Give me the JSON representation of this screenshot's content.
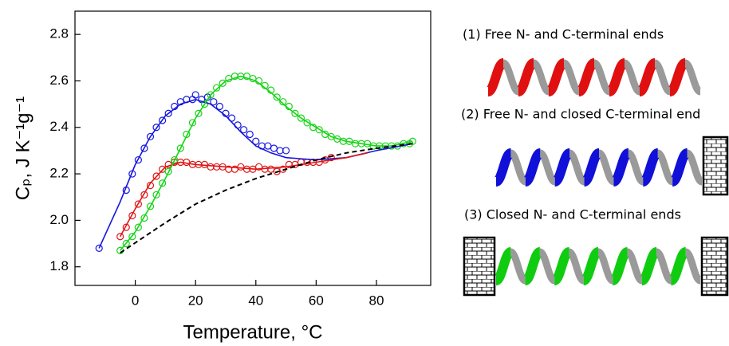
{
  "chart_data": {
    "type": "scatter",
    "xlabel": "Temperature, °C",
    "ylabel": "Cₚ, J K⁻¹g⁻¹",
    "xlim": [
      -20,
      98
    ],
    "ylim": [
      1.72,
      2.9
    ],
    "xticks": [
      0,
      20,
      40,
      60,
      80
    ],
    "yticks": [
      1.8,
      {
        "value": 2,
        "label": "2.0"
      },
      2.2,
      2.4,
      2.6,
      2.8
    ],
    "series": [
      {
        "mode": "markers",
        "color": "#1515e0",
        "x": [
          -12,
          -3,
          -1,
          1,
          3,
          5,
          7,
          9,
          11,
          13,
          15,
          17,
          19,
          20,
          22,
          24,
          26,
          28,
          30,
          32,
          34,
          36,
          38,
          40,
          42,
          44,
          46,
          48,
          50
        ],
        "values": [
          1.88,
          2.13,
          2.2,
          2.26,
          2.31,
          2.36,
          2.4,
          2.43,
          2.46,
          2.49,
          2.51,
          2.52,
          2.52,
          2.54,
          2.52,
          2.53,
          2.51,
          2.49,
          2.46,
          2.44,
          2.41,
          2.39,
          2.37,
          2.34,
          2.32,
          2.32,
          2.31,
          2.3,
          2.3
        ]
      },
      {
        "mode": "line",
        "color": "#1515e0",
        "x": [
          -12,
          -5,
          0,
          5,
          10,
          15,
          20,
          25,
          30,
          35,
          40,
          45,
          50,
          60,
          70,
          80,
          92
        ],
        "values": [
          1.88,
          2.08,
          2.24,
          2.36,
          2.45,
          2.5,
          2.52,
          2.5,
          2.45,
          2.38,
          2.32,
          2.29,
          2.27,
          2.26,
          2.27,
          2.3,
          2.33
        ]
      },
      {
        "mode": "markers",
        "color": "#e01515",
        "x": [
          -5,
          -3,
          -1,
          1,
          3,
          5,
          7,
          9,
          11,
          13,
          15,
          17,
          19,
          21,
          23,
          25,
          27,
          29,
          31,
          33,
          35,
          37,
          39,
          41,
          43,
          45,
          47,
          49,
          51,
          53,
          55,
          57,
          59,
          61,
          63,
          65
        ],
        "values": [
          1.93,
          1.97,
          2.02,
          2.07,
          2.11,
          2.15,
          2.19,
          2.22,
          2.24,
          2.25,
          2.25,
          2.25,
          2.24,
          2.24,
          2.24,
          2.23,
          2.23,
          2.23,
          2.22,
          2.22,
          2.23,
          2.22,
          2.22,
          2.23,
          2.22,
          2.22,
          2.21,
          2.22,
          2.24,
          2.24,
          2.25,
          2.25,
          2.25,
          2.25,
          2.26,
          2.27
        ]
      },
      {
        "mode": "line",
        "color": "#e01515",
        "x": [
          -5,
          0,
          5,
          10,
          15,
          20,
          30,
          40,
          50,
          60,
          70,
          77
        ],
        "values": [
          1.93,
          2.05,
          2.16,
          2.23,
          2.25,
          2.24,
          2.23,
          2.22,
          2.23,
          2.25,
          2.27,
          2.29
        ]
      },
      {
        "mode": "markers",
        "color": "#15d415",
        "x": [
          -5,
          -3,
          -1,
          1,
          3,
          5,
          7,
          9,
          11,
          13,
          15,
          17,
          19,
          21,
          23,
          25,
          27,
          29,
          31,
          33,
          35,
          37,
          39,
          41,
          43,
          45,
          47,
          49,
          51,
          53,
          55,
          57,
          59,
          61,
          63,
          65,
          67,
          69,
          71,
          73,
          75,
          77,
          79,
          81,
          83,
          85,
          87,
          89,
          91,
          92
        ],
        "values": [
          1.87,
          1.9,
          1.93,
          1.97,
          2.01,
          2.06,
          2.11,
          2.16,
          2.21,
          2.26,
          2.31,
          2.37,
          2.42,
          2.46,
          2.5,
          2.54,
          2.57,
          2.59,
          2.61,
          2.62,
          2.62,
          2.62,
          2.61,
          2.6,
          2.58,
          2.56,
          2.53,
          2.51,
          2.49,
          2.46,
          2.44,
          2.42,
          2.4,
          2.39,
          2.37,
          2.36,
          2.35,
          2.34,
          2.34,
          2.33,
          2.33,
          2.33,
          2.32,
          2.32,
          2.32,
          2.32,
          2.32,
          2.33,
          2.33,
          2.34
        ]
      },
      {
        "mode": "line",
        "color": "#15d415",
        "x": [
          -5,
          0,
          5,
          10,
          15,
          20,
          25,
          30,
          35,
          40,
          45,
          50,
          55,
          60,
          65,
          70,
          75,
          80,
          85,
          92
        ],
        "values": [
          1.87,
          1.95,
          2.06,
          2.18,
          2.31,
          2.44,
          2.54,
          2.6,
          2.62,
          2.6,
          2.55,
          2.49,
          2.44,
          2.4,
          2.36,
          2.34,
          2.33,
          2.32,
          2.32,
          2.34
        ]
      },
      {
        "mode": "line",
        "dash": true,
        "color": "#000000",
        "x": [
          -5,
          10,
          20,
          30,
          40,
          50,
          60,
          70,
          80,
          92
        ],
        "values": [
          1.86,
          1.99,
          2.07,
          2.13,
          2.18,
          2.22,
          2.26,
          2.29,
          2.31,
          2.33
        ]
      }
    ]
  },
  "panels": [
    "(1) Free N- and C-terminal ends",
    "(2) Free N- and closed C-terminal end",
    "(3) Closed N- and C-terminal ends"
  ]
}
